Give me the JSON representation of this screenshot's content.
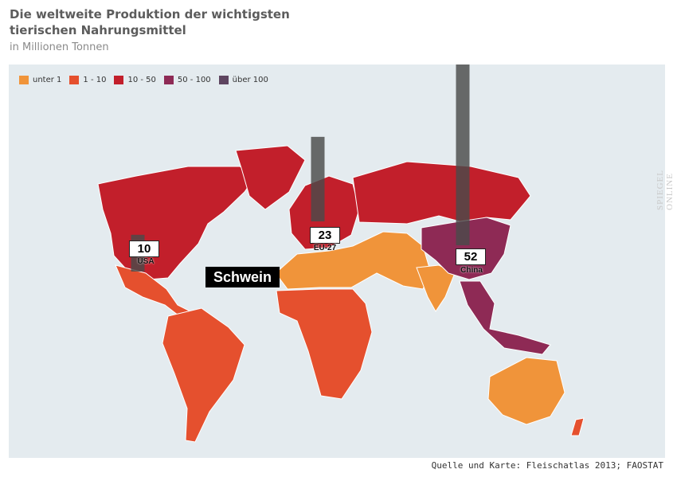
{
  "header": {
    "title": "Die weltweite Produktion der wichtigsten tierischen Nahrungsmittel",
    "subtitle": "in Millionen Tonnen"
  },
  "legend": [
    {
      "label": "unter 1",
      "color": "#f0943a"
    },
    {
      "label": "1 - 10",
      "color": "#e5502e"
    },
    {
      "label": "10 - 50",
      "color": "#c21f2b"
    },
    {
      "label": "50 - 100",
      "color": "#8e2a55"
    },
    {
      "label": "über 100",
      "color": "#5e4560"
    }
  ],
  "map": {
    "ocean_color": "#e4ebef",
    "highlight_label": "Schwein",
    "watermark": "SPIEGEL ONLINE"
  },
  "chart_data": {
    "type": "bar",
    "title": "Schwein",
    "categories": [
      "USA",
      "EU-27",
      "China"
    ],
    "values": [
      10,
      23,
      52
    ],
    "unit": "Millionen Tonnen",
    "bar_color": "#4a4a4a"
  },
  "footer": {
    "source": "Quelle und Karte: Fleischatlas 2013; FAOSTAT"
  }
}
